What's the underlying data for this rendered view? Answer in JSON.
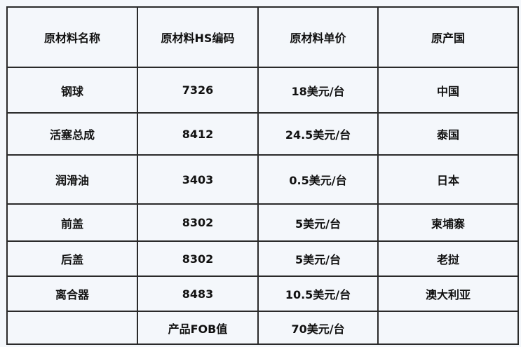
{
  "headers": [
    "原材料名称",
    "原材料HS编码",
    "原材料单价",
    "原产国"
  ],
  "rows": [
    [
      "钢球",
      "7326",
      "18美元/台",
      "中国"
    ],
    [
      "活塞总成",
      "8412",
      "24.5美元/台",
      "泰国"
    ],
    [
      "润滑油",
      "3403",
      "0.5美元/台",
      "日本"
    ],
    [
      "前盖",
      "8302",
      "5美元/台",
      "柬埔寨"
    ],
    [
      "后盖",
      "8302",
      "5美元/台",
      "老挝"
    ],
    [
      "离合器",
      "8483",
      "10.5美元/台",
      "澳大利亚"
    ],
    [
      "",
      "产品FOB值",
      "70美元/台",
      ""
    ]
  ]
}
